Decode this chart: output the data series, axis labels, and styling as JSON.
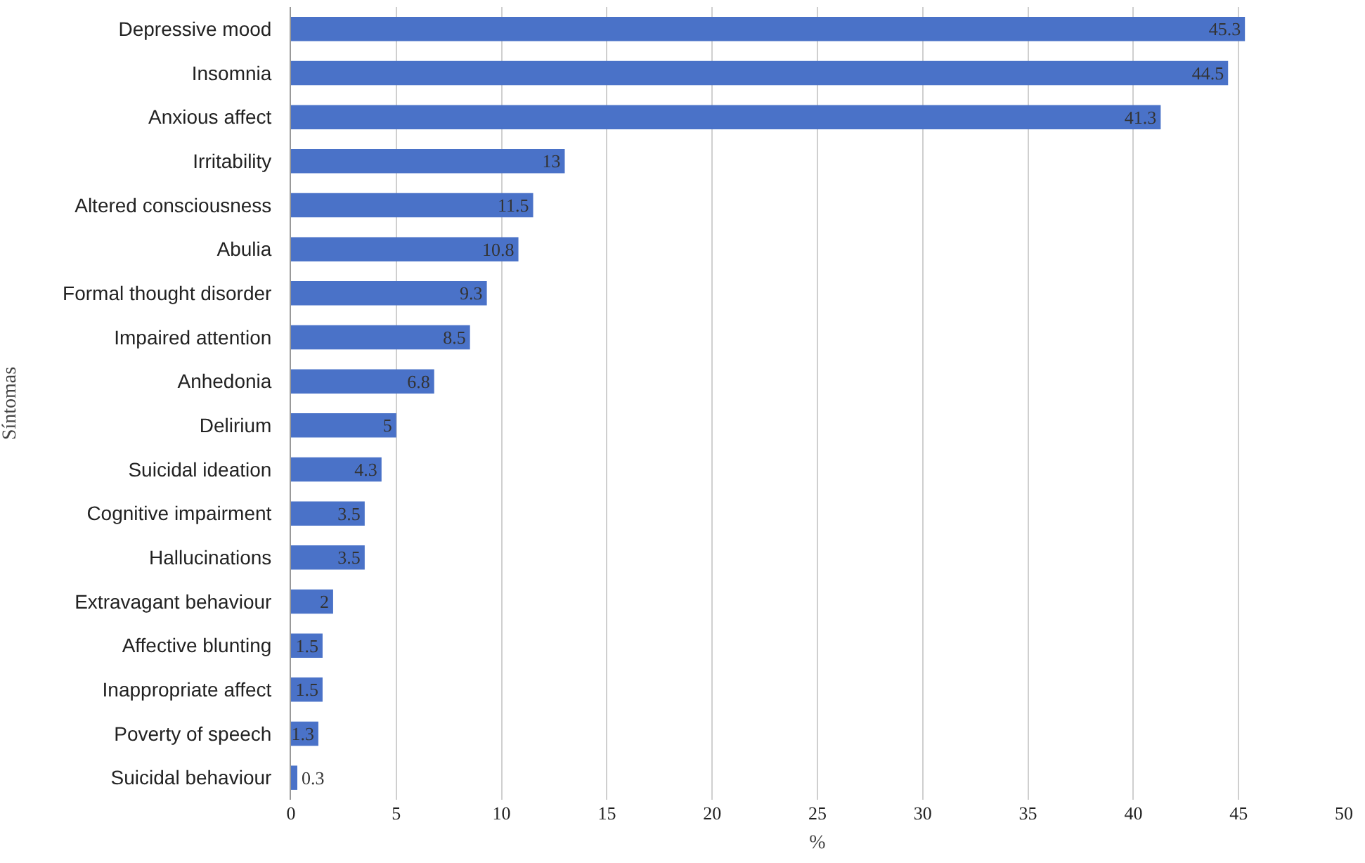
{
  "chart_data": {
    "type": "bar",
    "orientation": "horizontal",
    "xlabel": "%",
    "ylabel": "Síntomas",
    "categories": [
      "Depressive mood",
      "Insomnia",
      "Anxious affect",
      "Irritability",
      "Altered consciousness",
      "Abulia",
      "Formal thought disorder",
      "Impaired attention",
      "Anhedonia",
      "Delirium",
      "Suicidal ideation",
      "Cognitive impairment",
      "Hallucinations",
      "Extravagant behaviour",
      "Affective blunting",
      "Inappropriate affect",
      "Poverty of speech",
      "Suicidal behaviour"
    ],
    "values": [
      45.3,
      44.5,
      41.3,
      13,
      11.5,
      10.8,
      9.3,
      8.5,
      6.8,
      5,
      4.3,
      3.5,
      3.5,
      2,
      1.5,
      1.5,
      1.3,
      0.3
    ],
    "color": "#4a72c8",
    "data_labels": true,
    "xlim": [
      0,
      50
    ],
    "xticks": [
      0,
      5,
      10,
      15,
      20,
      25,
      30,
      35,
      40,
      45,
      50
    ],
    "grid": "x"
  }
}
